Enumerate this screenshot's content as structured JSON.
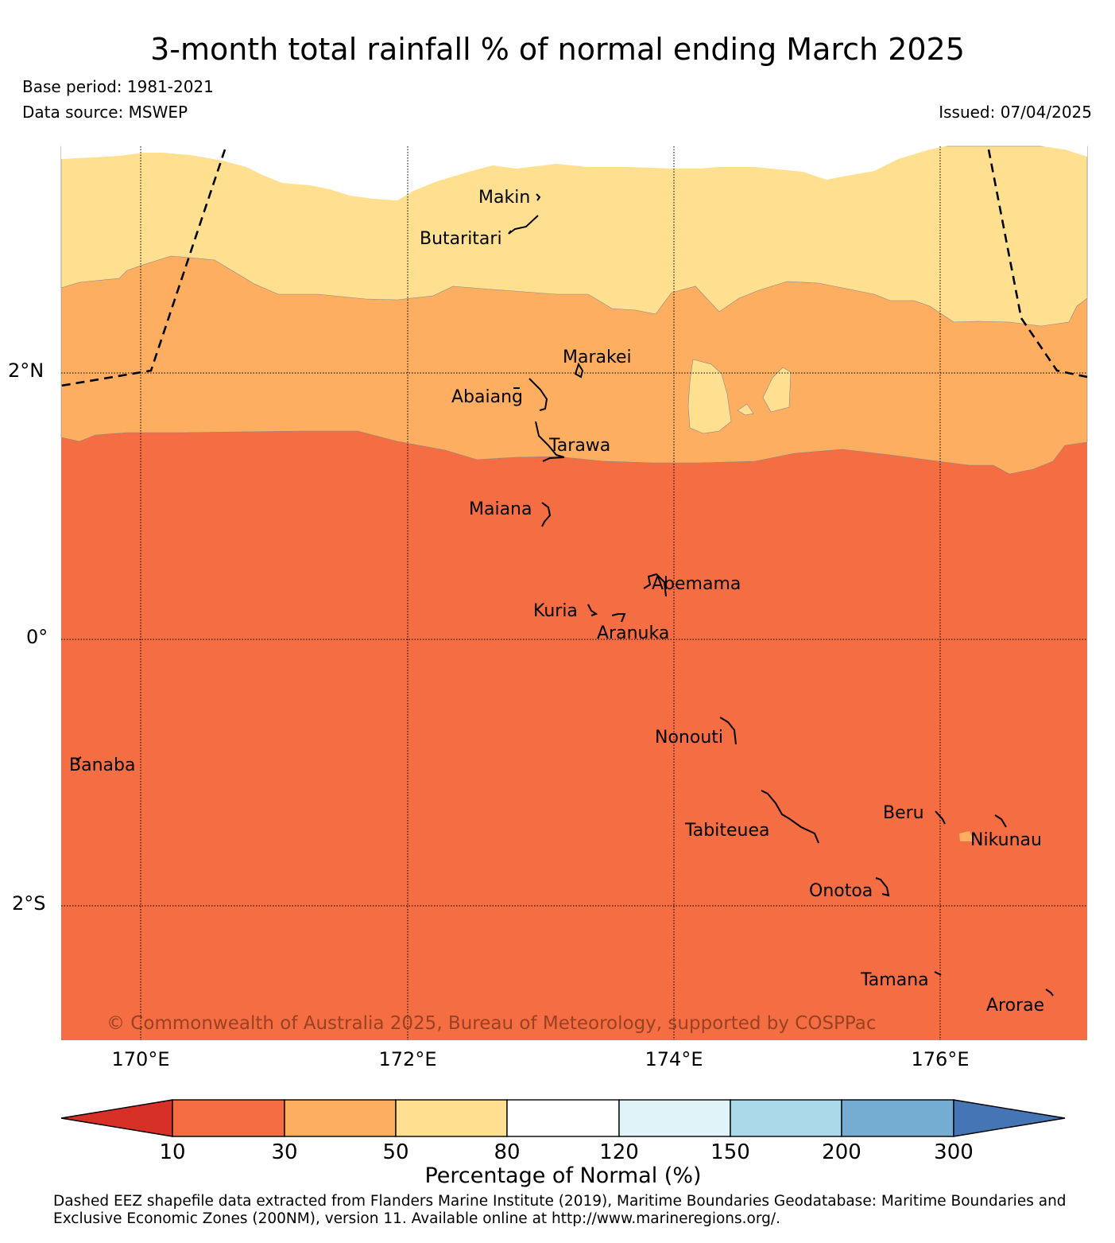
{
  "title": "3-month total rainfall % of normal ending March 2025",
  "base_period": "Base period: 1981-2021",
  "data_source": "Data source: MSWEP",
  "issued": "Issued: 07/04/2025",
  "lat_labels": [
    "2°N",
    "0°",
    "2°S"
  ],
  "lon_labels": [
    "170°E",
    "172°E",
    "174°E",
    "176°E"
  ],
  "islands": [
    "Makin",
    "Butaritari",
    "Marakei",
    "Abaiang",
    "Tarawa",
    "Maiana",
    "Abemama",
    "Kuria",
    "Aranuka",
    "Nonouti",
    "Banaba",
    "Beru",
    "Tabiteuea",
    "Nikunau",
    "Onotoa",
    "Tamana",
    "Arorae"
  ],
  "copyright": "© Commonwealth of Australia 2025, Bureau of Meteorology, supported by COSPPac",
  "colorbar": {
    "title": "Percentage of Normal (%)",
    "ticks": [
      "10",
      "30",
      "50",
      "80",
      "120",
      "150",
      "200",
      "300"
    ],
    "colors": {
      "below_10": "#d73027",
      "10_30": "#f46d43",
      "30_50": "#fdae61",
      "50_80": "#fee090",
      "80_120": "#ffffff",
      "120_150": "#e0f3f8",
      "150_200": "#abd9e9",
      "200_300": "#74add1",
      "above_300": "#4575b4"
    }
  },
  "footnote": "Dashed EEZ shapefile data extracted from Flanders Marine Institute (2019), Maritime Boundaries Geodatabase: Maritime Boundaries and Exclusive Economic Zones (200NM), version 11. Available online at http://www.marineregions.org/."
}
